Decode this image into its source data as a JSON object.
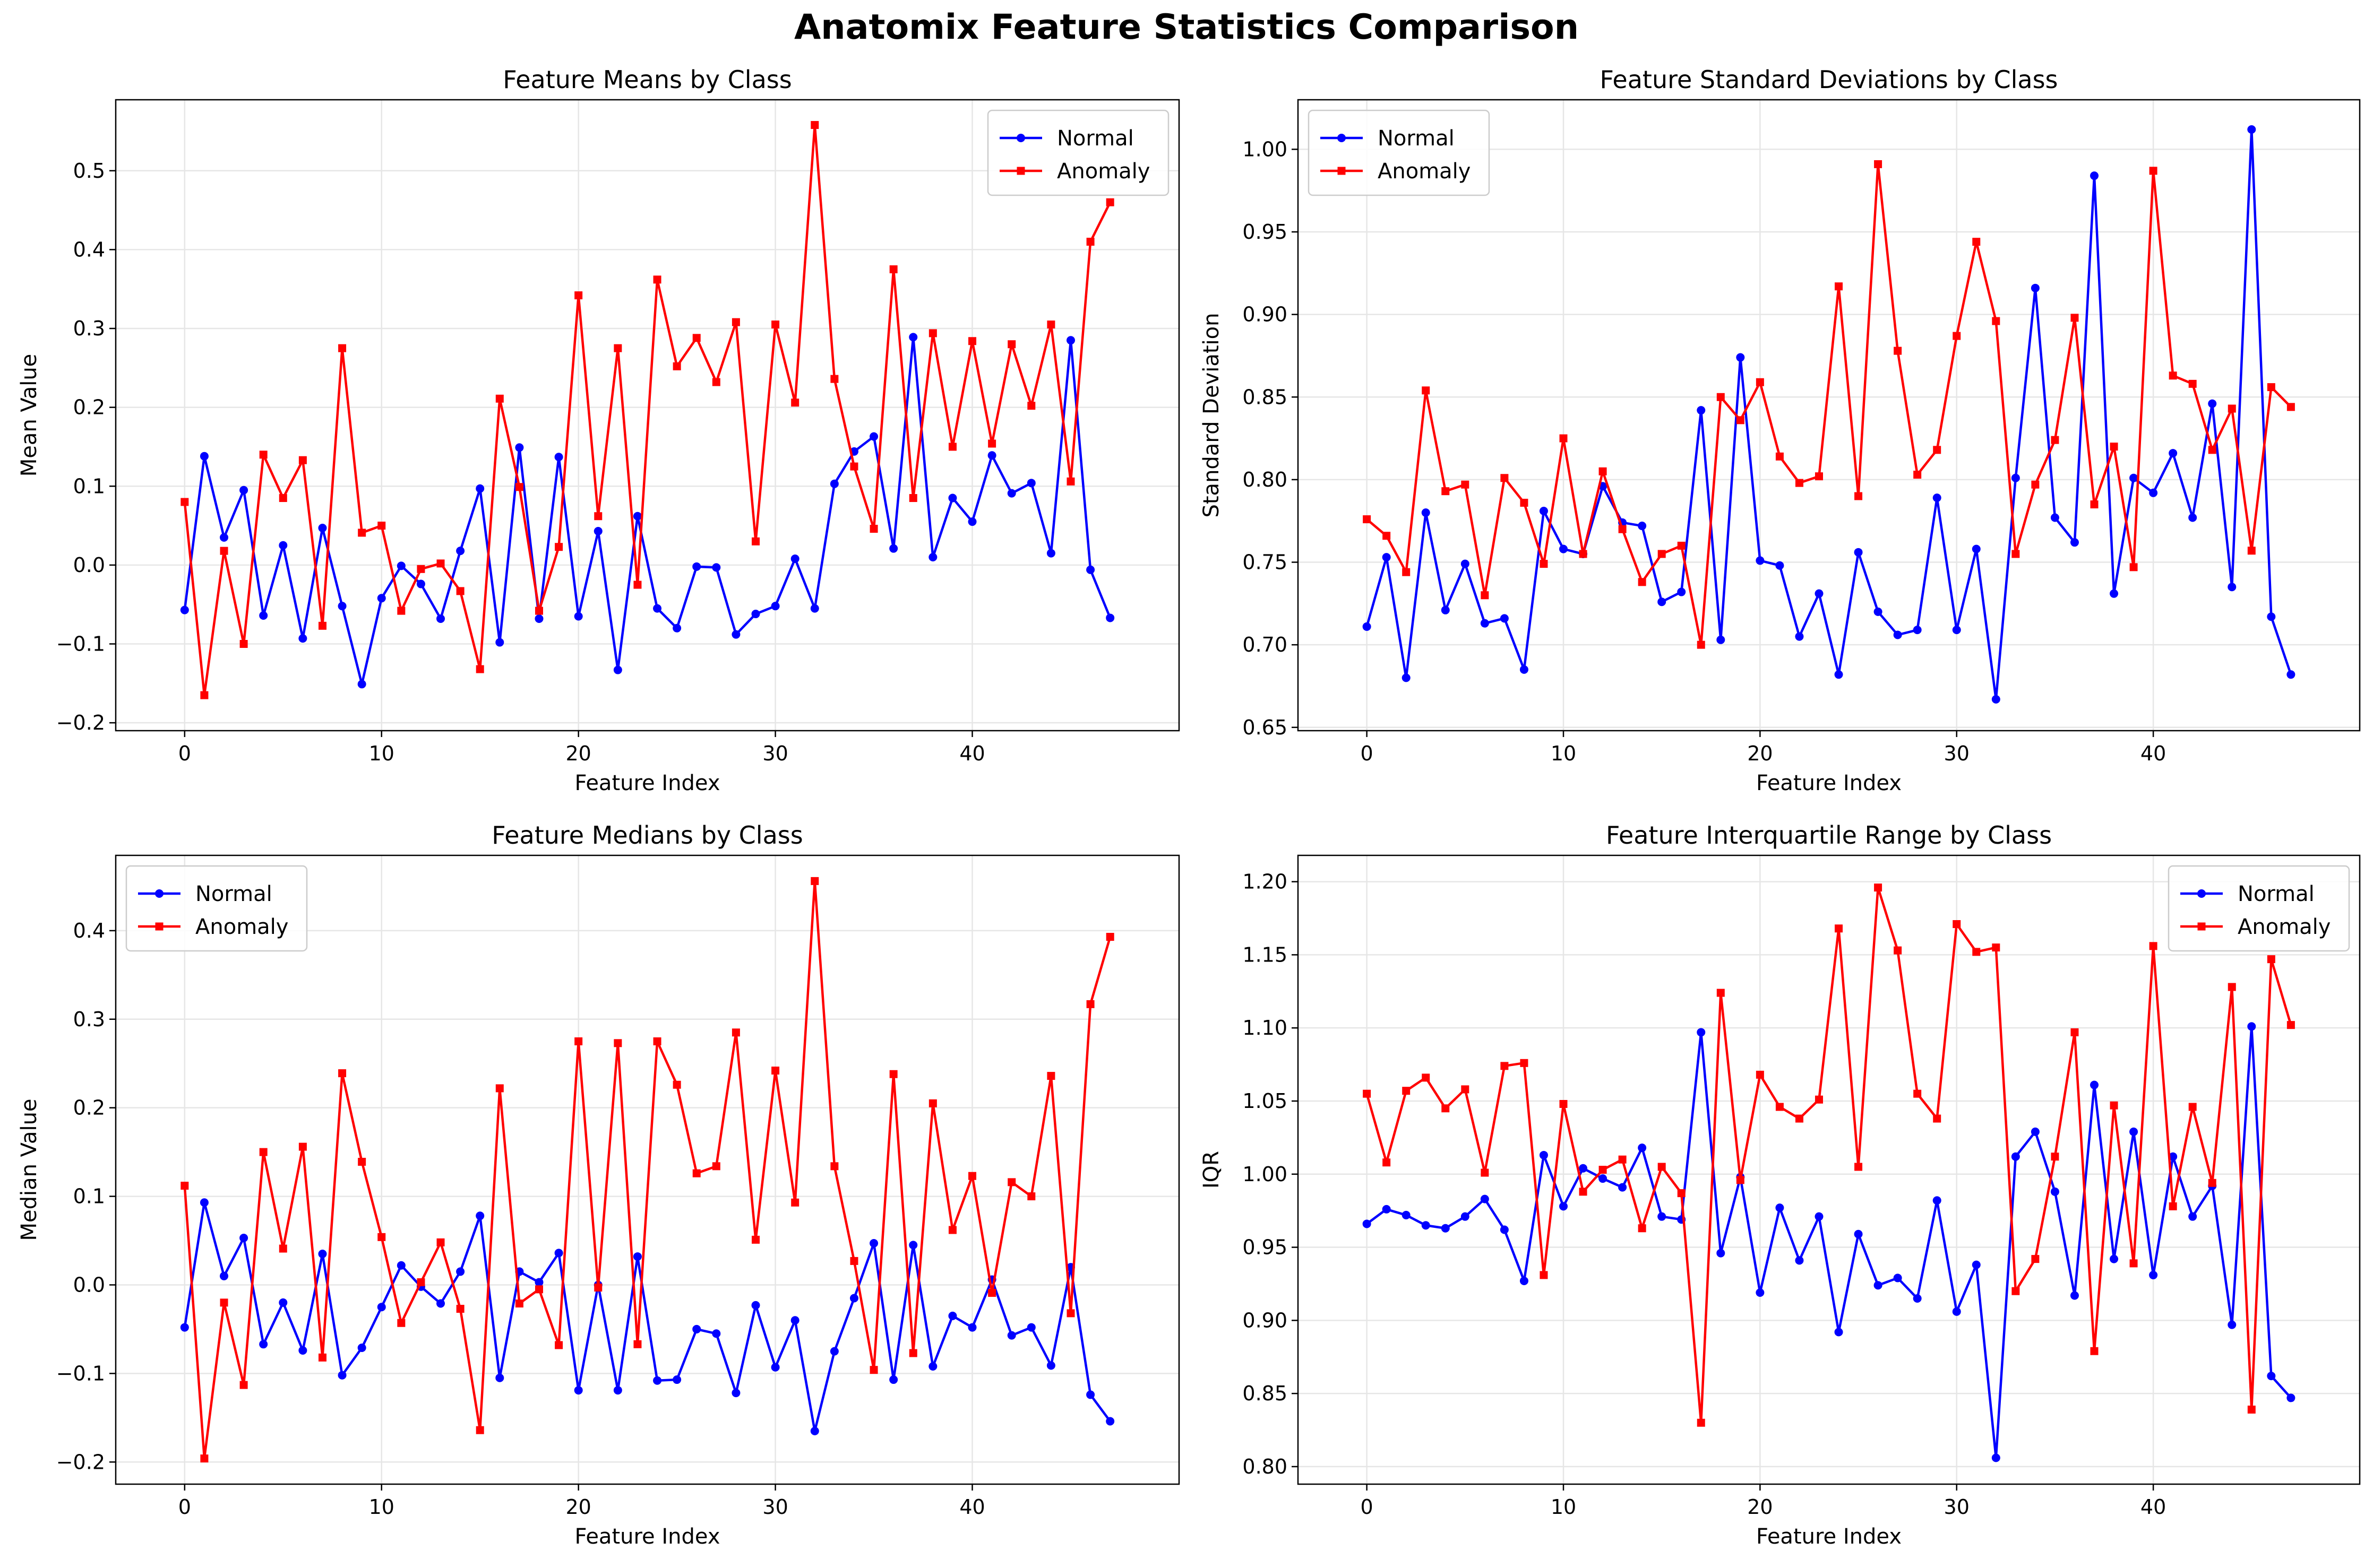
{
  "figure": {
    "title": "Anatomix Feature Statistics Comparison"
  },
  "colors": {
    "Normal": "#0000ff",
    "Anomaly": "#ff0000",
    "grid": "#e6e6e6"
  },
  "chart_data": [
    {
      "type": "line",
      "title": "Feature Means by Class",
      "xlabel": "Feature Index",
      "ylabel": "Mean Value",
      "xlim": [
        -3.5,
        50.5
      ],
      "ylim": [
        -0.21,
        0.59
      ],
      "xticks": [
        0,
        10,
        20,
        30,
        40
      ],
      "yticks": [
        -0.2,
        -0.1,
        0.0,
        0.1,
        0.2,
        0.3,
        0.4,
        0.5
      ],
      "ytick_labels": [
        "−0.2",
        "−0.1",
        "0.0",
        "0.1",
        "0.2",
        "0.3",
        "0.4",
        "0.5"
      ],
      "grid": true,
      "legend": "top-right",
      "series": [
        {
          "name": "Normal",
          "color": "#0000ff",
          "marker": "circle",
          "values": [
            -0.057,
            0.138,
            0.035,
            0.095,
            -0.064,
            0.025,
            -0.093,
            0.047,
            -0.052,
            -0.151,
            -0.042,
            -0.001,
            -0.024,
            -0.068,
            0.018,
            0.097,
            -0.098,
            0.149,
            -0.068,
            0.137,
            -0.065,
            0.043,
            -0.133,
            0.062,
            -0.055,
            -0.08,
            -0.002,
            -0.003,
            -0.088,
            -0.062,
            -0.052,
            0.008,
            -0.055,
            0.103,
            0.144,
            0.163,
            0.021,
            0.289,
            0.01,
            0.085,
            0.055,
            0.139,
            0.091,
            0.104,
            0.015,
            0.285,
            -0.006,
            -0.067
          ]
        },
        {
          "name": "Anomaly",
          "color": "#ff0000",
          "marker": "square",
          "values": [
            0.08,
            -0.165,
            0.018,
            -0.1,
            0.14,
            0.085,
            0.133,
            -0.077,
            0.275,
            0.041,
            0.05,
            -0.058,
            -0.005,
            0.002,
            -0.033,
            -0.132,
            0.211,
            0.099,
            -0.058,
            0.023,
            0.342,
            0.062,
            0.275,
            -0.025,
            0.362,
            0.252,
            0.288,
            0.232,
            0.308,
            0.03,
            0.305,
            0.206,
            0.558,
            0.236,
            0.125,
            0.046,
            0.375,
            0.085,
            0.294,
            0.15,
            0.284,
            0.154,
            0.28,
            0.202,
            0.305,
            0.106,
            0.41,
            0.46
          ]
        }
      ]
    },
    {
      "type": "line",
      "title": "Feature Standard Deviations by Class",
      "xlabel": "Feature Index",
      "ylabel": "Standard Deviation",
      "xlim": [
        -3.5,
        50.5
      ],
      "ylim": [
        0.648,
        1.03
      ],
      "xticks": [
        0,
        10,
        20,
        30,
        40
      ],
      "yticks": [
        0.65,
        0.7,
        0.75,
        0.8,
        0.85,
        0.9,
        0.95,
        1.0
      ],
      "ytick_labels": [
        "0.65",
        "0.70",
        "0.75",
        "0.80",
        "0.85",
        "0.90",
        "0.95",
        "1.00"
      ],
      "grid": true,
      "legend": "top-left",
      "series": [
        {
          "name": "Normal",
          "color": "#0000ff",
          "marker": "circle",
          "values": [
            0.711,
            0.753,
            0.68,
            0.78,
            0.721,
            0.749,
            0.713,
            0.716,
            0.685,
            0.781,
            0.758,
            0.755,
            0.796,
            0.774,
            0.772,
            0.726,
            0.732,
            0.842,
            0.703,
            0.874,
            0.751,
            0.748,
            0.705,
            0.731,
            0.682,
            0.756,
            0.72,
            0.706,
            0.709,
            0.789,
            0.709,
            0.758,
            0.667,
            0.801,
            0.916,
            0.777,
            0.762,
            0.984,
            0.731,
            0.801,
            0.792,
            0.816,
            0.777,
            0.846,
            0.735,
            1.012,
            0.717,
            0.682
          ]
        },
        {
          "name": "Anomaly",
          "color": "#ff0000",
          "marker": "square",
          "values": [
            0.776,
            0.766,
            0.744,
            0.854,
            0.793,
            0.797,
            0.73,
            0.801,
            0.786,
            0.749,
            0.825,
            0.755,
            0.805,
            0.77,
            0.738,
            0.755,
            0.76,
            0.7,
            0.85,
            0.836,
            0.859,
            0.814,
            0.798,
            0.802,
            0.917,
            0.79,
            0.991,
            0.878,
            0.803,
            0.818,
            0.887,
            0.944,
            0.896,
            0.755,
            0.797,
            0.824,
            0.898,
            0.785,
            0.82,
            0.747,
            0.987,
            0.863,
            0.858,
            0.818,
            0.843,
            0.757,
            0.856,
            0.844
          ]
        }
      ]
    },
    {
      "type": "line",
      "title": "Feature Medians by Class",
      "xlabel": "Feature Index",
      "ylabel": "Median Value",
      "xlim": [
        -3.5,
        50.5
      ],
      "ylim": [
        -0.225,
        0.485
      ],
      "xticks": [
        0,
        10,
        20,
        30,
        40
      ],
      "yticks": [
        -0.2,
        -0.1,
        0.0,
        0.1,
        0.2,
        0.3,
        0.4
      ],
      "ytick_labels": [
        "−0.2",
        "−0.1",
        "0.0",
        "0.1",
        "0.2",
        "0.3",
        "0.4"
      ],
      "grid": true,
      "legend": "top-left",
      "series": [
        {
          "name": "Normal",
          "color": "#0000ff",
          "marker": "circle",
          "values": [
            -0.048,
            0.093,
            0.01,
            0.053,
            -0.067,
            -0.02,
            -0.074,
            0.035,
            -0.102,
            -0.071,
            -0.025,
            0.022,
            -0.002,
            -0.021,
            0.015,
            0.078,
            -0.105,
            0.015,
            0.003,
            0.036,
            -0.119,
            0.0,
            -0.119,
            0.032,
            -0.108,
            -0.107,
            -0.05,
            -0.055,
            -0.122,
            -0.023,
            -0.093,
            -0.04,
            -0.165,
            -0.075,
            -0.015,
            0.047,
            -0.107,
            0.045,
            -0.092,
            -0.035,
            -0.048,
            0.006,
            -0.057,
            -0.048,
            -0.091,
            0.02,
            -0.124,
            -0.154
          ]
        },
        {
          "name": "Anomaly",
          "color": "#ff0000",
          "marker": "square",
          "values": [
            0.112,
            -0.196,
            -0.02,
            -0.113,
            0.15,
            0.041,
            0.156,
            -0.082,
            0.239,
            0.139,
            0.054,
            -0.043,
            0.003,
            0.048,
            -0.027,
            -0.164,
            0.222,
            -0.021,
            -0.005,
            -0.068,
            0.275,
            -0.003,
            0.273,
            -0.067,
            0.275,
            0.226,
            0.126,
            0.134,
            0.285,
            0.051,
            0.242,
            0.093,
            0.456,
            0.134,
            0.027,
            -0.096,
            0.238,
            -0.077,
            0.205,
            0.062,
            0.123,
            -0.009,
            0.116,
            0.1,
            0.236,
            -0.032,
            0.317,
            0.393
          ]
        }
      ]
    },
    {
      "type": "line",
      "title": "Feature Interquartile Range by Class",
      "xlabel": "Feature Index",
      "ylabel": "IQR",
      "xlim": [
        -3.5,
        50.5
      ],
      "ylim": [
        0.788,
        1.218
      ],
      "xticks": [
        0,
        10,
        20,
        30,
        40
      ],
      "yticks": [
        0.8,
        0.85,
        0.9,
        0.95,
        1.0,
        1.05,
        1.1,
        1.15,
        1.2
      ],
      "ytick_labels": [
        "0.80",
        "0.85",
        "0.90",
        "0.95",
        "1.00",
        "1.05",
        "1.10",
        "1.15",
        "1.20"
      ],
      "grid": true,
      "legend": "top-right",
      "series": [
        {
          "name": "Normal",
          "color": "#0000ff",
          "marker": "circle",
          "values": [
            0.966,
            0.976,
            0.972,
            0.965,
            0.963,
            0.971,
            0.983,
            0.962,
            0.927,
            1.013,
            0.978,
            1.004,
            0.997,
            0.991,
            1.018,
            0.971,
            0.969,
            1.097,
            0.946,
            0.998,
            0.919,
            0.977,
            0.941,
            0.971,
            0.892,
            0.959,
            0.924,
            0.929,
            0.915,
            0.982,
            0.906,
            0.938,
            0.806,
            1.012,
            1.029,
            0.988,
            0.917,
            1.061,
            0.942,
            1.029,
            0.931,
            1.012,
            0.971,
            0.992,
            0.897,
            1.101,
            0.862,
            0.847
          ]
        },
        {
          "name": "Anomaly",
          "color": "#ff0000",
          "marker": "square",
          "values": [
            1.055,
            1.008,
            1.057,
            1.066,
            1.045,
            1.058,
            1.001,
            1.074,
            1.076,
            0.931,
            1.048,
            0.988,
            1.003,
            1.01,
            0.963,
            1.005,
            0.987,
            0.83,
            1.124,
            0.996,
            1.068,
            1.046,
            1.038,
            1.051,
            1.168,
            1.005,
            1.196,
            1.153,
            1.055,
            1.038,
            1.171,
            1.152,
            1.155,
            0.92,
            0.942,
            1.012,
            1.097,
            0.879,
            1.047,
            0.939,
            1.156,
            0.978,
            1.046,
            0.994,
            1.128,
            0.839,
            1.147,
            1.102
          ]
        }
      ]
    }
  ]
}
